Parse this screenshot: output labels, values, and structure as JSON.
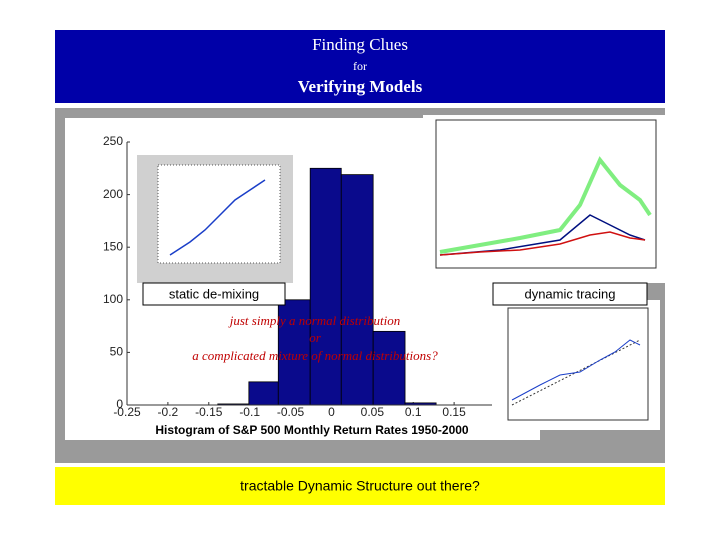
{
  "header": {
    "title": "Finding Clues",
    "connector": "for",
    "subtitle": "Verifying Models"
  },
  "chart_data": {
    "type": "histogram",
    "title": "Histogram of S&P 500 Monthly Return Rates 1950-2000",
    "bins": [
      -0.139,
      -0.101,
      -0.065,
      -0.026,
      0.012,
      0.051,
      0.09,
      0.128
    ],
    "values": [
      1,
      22,
      100,
      225,
      219,
      70,
      2
    ],
    "color": "#0a0a8c",
    "xlim": [
      -0.25,
      0.2
    ],
    "xticks": [
      -0.25,
      -0.2,
      -0.15,
      -0.1,
      -0.05,
      0,
      0.05,
      0.1,
      0.15
    ],
    "ylim": [
      0,
      250
    ],
    "yticks": [
      0,
      50,
      100,
      150,
      200,
      250
    ]
  },
  "labels": {
    "left": "static de-mixing",
    "right": "dynamic tracing"
  },
  "question": [
    "just simply a normal distribution",
    "or",
    "a complicated mixture of normal distributions?"
  ],
  "footer": "tractable Dynamic Structure out there?"
}
